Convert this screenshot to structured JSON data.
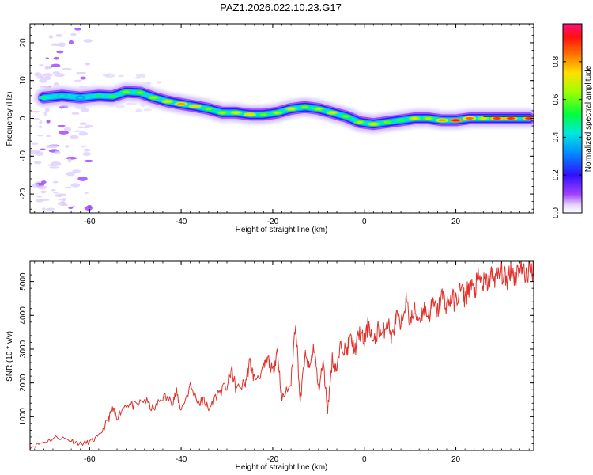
{
  "title": "PAZ1.2026.022.10.23.G17",
  "colors": {
    "snr_line": "#e0302a",
    "ridge_core": "#ff2020",
    "scatter_halo": "#c8b8f0"
  },
  "chart_data": [
    {
      "type": "heatmap",
      "title": "PAZ1.2026.022.10.23.G17",
      "xlabel": "Height of straight line (km)",
      "ylabel": "Frequency (Hz)",
      "xlim": [
        -73,
        37
      ],
      "ylim": [
        -25,
        25
      ],
      "x_ticks": [
        -60,
        -40,
        -20,
        0,
        20
      ],
      "y_ticks": [
        -20,
        -10,
        0,
        10,
        20
      ],
      "colorbar": {
        "label": "Normalized spectral amplitude",
        "range": [
          0,
          1
        ],
        "ticks": [
          0.0,
          0.2,
          0.4,
          0.6,
          0.8
        ]
      },
      "ridge": {
        "x": [
          -70,
          -66,
          -62,
          -58,
          -55,
          -52,
          -49,
          -46,
          -43,
          -40,
          -37,
          -34,
          -31,
          -28,
          -25,
          -22,
          -19,
          -16,
          -13,
          -10,
          -7,
          -4,
          -1,
          2,
          5,
          8,
          11,
          14,
          17,
          20,
          23,
          26,
          29,
          32,
          36
        ],
        "frequency": [
          5.5,
          6.0,
          5.5,
          6.0,
          5.8,
          7.0,
          6.8,
          5.5,
          4.5,
          3.8,
          3.2,
          2.5,
          1.5,
          1.5,
          1.0,
          1.0,
          1.5,
          2.5,
          3.0,
          2.5,
          1.5,
          0.5,
          -1.0,
          -1.5,
          -1.0,
          -0.5,
          0.0,
          0.0,
          -0.5,
          -0.5,
          0.0,
          0.0,
          0.0,
          0.0,
          0.0
        ],
        "amplitude": [
          0.5,
          0.45,
          0.4,
          0.5,
          0.55,
          0.6,
          0.6,
          0.65,
          0.7,
          0.8,
          0.75,
          0.6,
          0.65,
          0.7,
          0.75,
          0.6,
          0.65,
          0.7,
          0.6,
          0.65,
          0.7,
          0.6,
          0.65,
          0.7,
          0.6,
          0.55,
          0.7,
          0.65,
          0.8,
          0.95,
          0.85,
          0.7,
          0.9,
          0.9,
          0.9
        ]
      }
    },
    {
      "type": "line",
      "title": "",
      "xlabel": "Height of straight line (km)",
      "ylabel": "SNR (10 * v/v)",
      "xlim": [
        -73,
        37
      ],
      "ylim": [
        0,
        5600
      ],
      "x_ticks": [
        -60,
        -40,
        -20,
        0,
        20
      ],
      "y_ticks": [
        1000,
        2000,
        3000,
        4000,
        5000
      ],
      "series": [
        {
          "name": "SNR",
          "x": [
            -73,
            -70,
            -67,
            -64,
            -62,
            -60,
            -58,
            -56,
            -55,
            -54,
            -52,
            -50,
            -48,
            -46,
            -44,
            -42,
            -41,
            -40,
            -38,
            -36,
            -35,
            -34,
            -32,
            -30,
            -29,
            -28,
            -26,
            -25,
            -24,
            -22,
            -21,
            -20,
            -19,
            -18,
            -16,
            -15,
            -14,
            -13,
            -12,
            -11,
            -10,
            -9,
            -8,
            -7,
            -6,
            -5,
            -4,
            -3,
            -2,
            -1,
            0,
            1,
            2,
            3,
            4,
            5,
            6,
            7,
            8,
            9,
            10,
            11,
            12,
            13,
            14,
            15,
            16,
            17,
            18,
            19,
            20,
            21,
            22,
            23,
            24,
            25,
            26,
            27,
            28,
            29,
            30,
            31,
            32,
            33,
            34,
            35,
            36,
            37
          ],
          "values": [
            100,
            250,
            400,
            300,
            200,
            250,
            400,
            900,
            1200,
            1000,
            1400,
            1300,
            1500,
            1200,
            1600,
            1450,
            1700,
            1200,
            1900,
            1400,
            1500,
            1200,
            1700,
            1900,
            2400,
            1800,
            2000,
            2600,
            2100,
            2400,
            2700,
            2300,
            3000,
            1500,
            2000,
            3900,
            1400,
            2800,
            2400,
            3100,
            1800,
            2600,
            1200,
            2700,
            2400,
            3200,
            2900,
            3300,
            3000,
            3500,
            3200,
            3800,
            3100,
            3600,
            3400,
            3900,
            3300,
            4000,
            3600,
            4500,
            3800,
            4100,
            3900,
            4200,
            4000,
            4300,
            4100,
            4600,
            4300,
            4500,
            4400,
            4800,
            4500,
            4900,
            4700,
            5100,
            4900,
            5000,
            5200,
            5100,
            5300,
            5000,
            5400,
            5100,
            5500,
            5200,
            5300,
            5400
          ]
        }
      ]
    }
  ]
}
